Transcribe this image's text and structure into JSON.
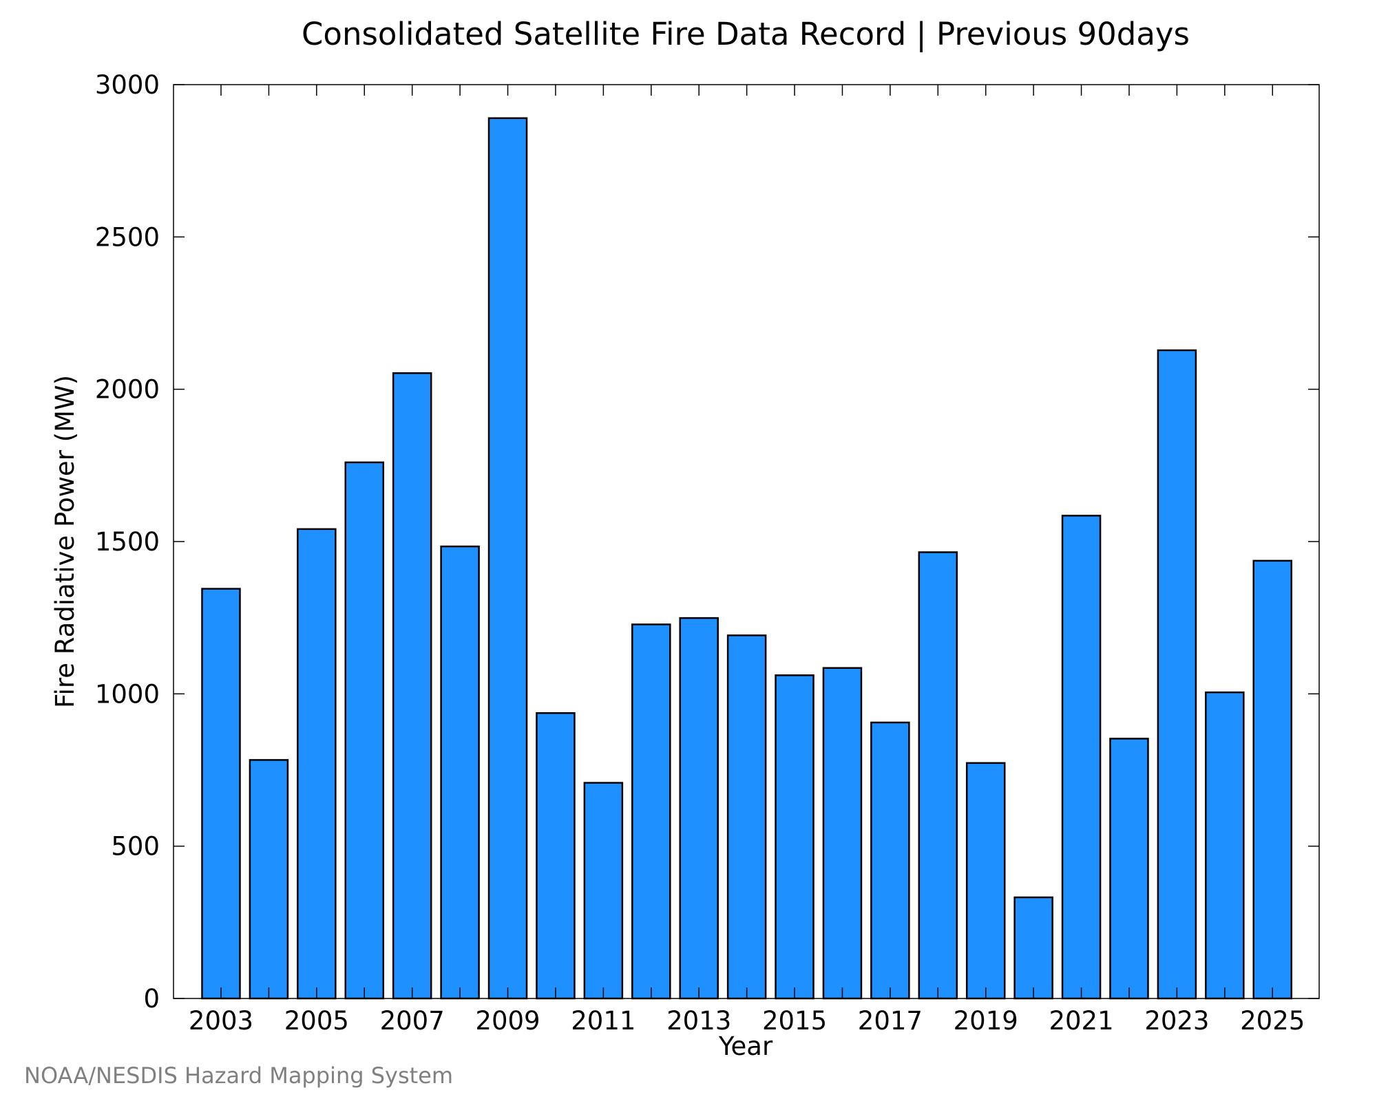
{
  "chart_data": {
    "type": "bar",
    "title": "Consolidated Satellite Fire Data Record | Previous 90days",
    "xlabel": "Year",
    "ylabel": "Fire Radiative Power (MW)",
    "ylim": [
      0,
      3000
    ],
    "yticks": [
      0,
      500,
      1000,
      1500,
      2000,
      2500,
      3000
    ],
    "xtick_labels": [
      "2003",
      "2005",
      "2007",
      "2009",
      "2011",
      "2013",
      "2015",
      "2017",
      "2019",
      "2021",
      "2023",
      "2025"
    ],
    "categories": [
      "2003",
      "2004",
      "2005",
      "2006",
      "2007",
      "2008",
      "2009",
      "2010",
      "2011",
      "2012",
      "2013",
      "2014",
      "2015",
      "2016",
      "2017",
      "2018",
      "2019",
      "2020",
      "2021",
      "2022",
      "2023",
      "2024",
      "2025"
    ],
    "values": [
      1345,
      783,
      1541,
      1760,
      2053,
      1484,
      2890,
      937,
      708,
      1228,
      1249,
      1192,
      1061,
      1085,
      906,
      1465,
      773,
      332,
      1585,
      853,
      2128,
      1005,
      1437
    ],
    "bar_color": "#1e90ff",
    "bar_edge_color": "#000000",
    "grid": false,
    "legend": "none"
  },
  "credit": "NOAA/NESDIS Hazard Mapping System"
}
